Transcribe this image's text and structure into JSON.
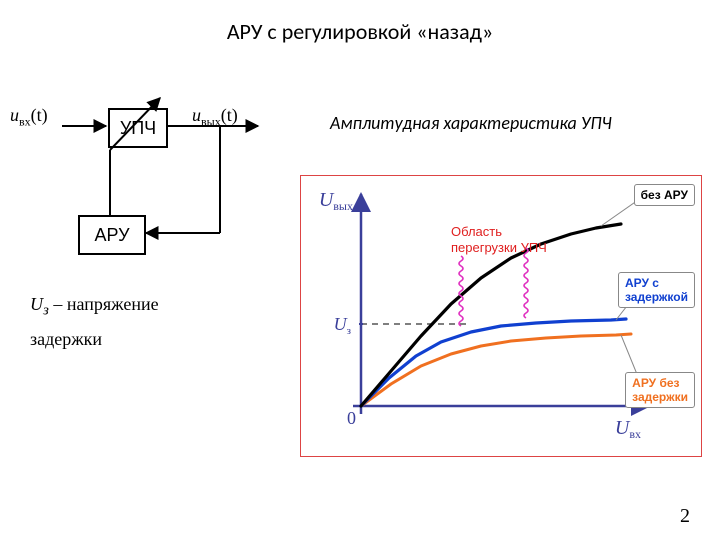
{
  "title": "АРУ с регулировкой «назад»",
  "signals": {
    "in": "u",
    "in_sub": "вх",
    "in_arg": "(t)",
    "out": "u",
    "out_sub": "вых",
    "out_arg": "(t)"
  },
  "blocks": {
    "upch": "УПЧ",
    "aru": "АРУ"
  },
  "note": {
    "u3": "U",
    "u3_sub": "з",
    "dash": " – ",
    "text1": "напряжение",
    "text2": "задержки"
  },
  "subtitle": "Амплитудная характеристика УПЧ",
  "pagenum": "2",
  "chart": {
    "bg": "#ffffff",
    "axis_color": "#3a3f9a",
    "axis_width": 2.5,
    "ylabel": "U",
    "ylabel_sub": "вых",
    "xlabel": "U",
    "xlabel_sub": "вх",
    "origin_label": "0",
    "u3_label": "U",
    "u3_sub": "з",
    "overload_label": "Область\nперегрузки УПЧ",
    "overload_color": "#e02020",
    "squiggle_color": "#e030c0",
    "dash_color": "#555",
    "curves": {
      "no_agc": {
        "color": "#000000",
        "width": 3.2,
        "pts": [
          [
            60,
            230
          ],
          [
            90,
            195
          ],
          [
            120,
            160
          ],
          [
            150,
            128
          ],
          [
            180,
            102
          ],
          [
            210,
            82
          ],
          [
            240,
            68
          ],
          [
            270,
            58
          ],
          [
            295,
            52
          ],
          [
            320,
            48
          ]
        ]
      },
      "delayed": {
        "color": "#1040d0",
        "width": 3.2,
        "pts": [
          [
            60,
            230
          ],
          [
            88,
            202
          ],
          [
            115,
            180
          ],
          [
            140,
            166
          ],
          [
            170,
            156
          ],
          [
            200,
            150
          ],
          [
            235,
            147
          ],
          [
            270,
            145
          ],
          [
            310,
            144
          ],
          [
            325,
            143
          ]
        ]
      },
      "no_delay": {
        "color": "#f07020",
        "width": 3.0,
        "pts": [
          [
            60,
            230
          ],
          [
            90,
            208
          ],
          [
            120,
            190
          ],
          [
            150,
            178
          ],
          [
            180,
            170
          ],
          [
            210,
            165
          ],
          [
            245,
            162
          ],
          [
            280,
            160
          ],
          [
            315,
            159
          ],
          [
            330,
            158
          ]
        ]
      }
    },
    "callouts": {
      "no_agc": {
        "text": "без АРУ",
        "color": "#000000",
        "bold": true
      },
      "delayed": {
        "text": "АРУ с\nзадержкой",
        "color": "#1040d0",
        "bold": true
      },
      "no_delay": {
        "text": "АРУ без\nзадержки",
        "color": "#f07020",
        "bold": true
      }
    }
  }
}
